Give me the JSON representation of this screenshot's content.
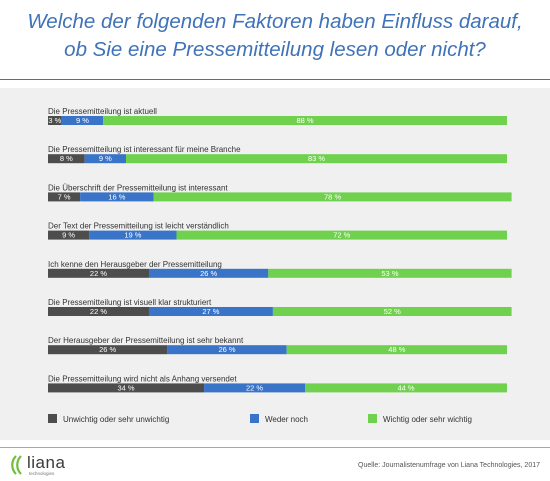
{
  "title": {
    "line1": "Welche der folgenden Faktoren haben Einfluss darauf,",
    "line2": "ob Sie eine Pressemitteilung lesen oder nicht?"
  },
  "chart_data": {
    "type": "bar",
    "orientation": "horizontal",
    "stacked": true,
    "categories": [
      "Die Pressemitteilung ist aktuell",
      "Die Pressemitteilung ist interessant für meine Branche",
      "Die Überschrift der Pressemitteilung ist interessant",
      "Der Text der Pressemitteilung ist leicht verständlich",
      "Ich kenne den Herausgeber der Pressemitteilung",
      "Die Pressemitteilung ist visuell klar strukturiert",
      "Der Herausgeber der Pressemitteilung ist sehr bekannt",
      "Die Pressemitteilung wird nicht als Anhang versendet"
    ],
    "series": [
      {
        "name": "Unwichtig oder sehr unwichtig",
        "color": "#4d4d4d",
        "values": [
          3,
          8,
          7,
          9,
          22,
          22,
          26,
          34
        ]
      },
      {
        "name": "Weder noch",
        "color": "#3a74c8",
        "values": [
          9,
          9,
          16,
          19,
          26,
          27,
          26,
          22
        ]
      },
      {
        "name": "Wichtig oder sehr wichtig",
        "color": "#6fd14d",
        "values": [
          88,
          83,
          78,
          72,
          53,
          52,
          48,
          44
        ]
      }
    ],
    "value_suffix": " %",
    "xlim": [
      0,
      100
    ],
    "legend_position": "bottom",
    "grid": false
  },
  "logo": {
    "name": "liana",
    "tagline": "technologies"
  },
  "source": "Quelle: Journalistenumfrage von Liana Technologies, 2017"
}
